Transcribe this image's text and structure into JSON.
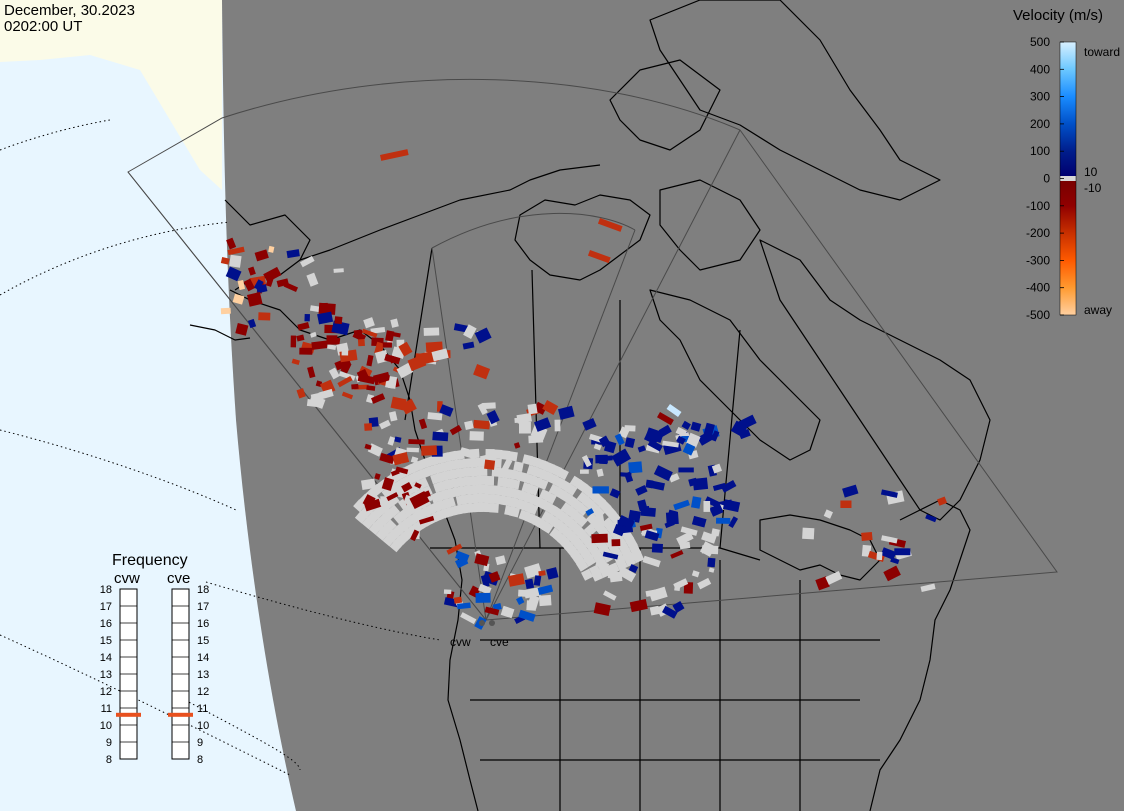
{
  "header": {
    "date": "December, 30.2023",
    "time": "0202:00 UT"
  },
  "colorbar": {
    "title": "Velocity (m/s)",
    "ticks": [
      "500",
      "400",
      "300",
      "200",
      "100",
      "0",
      "-100",
      "-200",
      "-300",
      "-400",
      "-500"
    ],
    "ticks_values": [
      500,
      400,
      300,
      200,
      100,
      0,
      -100,
      -200,
      -300,
      -400,
      -500
    ],
    "inner_labels": [
      "10",
      "-10"
    ],
    "toward_label": "toward",
    "away_label": "away",
    "stops": [
      "#d8f0ff",
      "#6cc8ff",
      "#1a8cff",
      "#0050c8",
      "#001e8c",
      "#000070",
      "#d8d8d8",
      "#7a0000",
      "#a01000",
      "#c83000",
      "#ff7a00",
      "#ffd0a0"
    ]
  },
  "frequency_panel": {
    "title": "Frequency",
    "radars": [
      "cvw",
      "cve"
    ],
    "scale": [
      "18",
      "17",
      "16",
      "15",
      "14",
      "13",
      "12",
      "11",
      "10",
      "9",
      "8"
    ],
    "scale_values": [
      18,
      17,
      16,
      15,
      14,
      13,
      12,
      11,
      10,
      9,
      8
    ],
    "current_mhz": [
      10.6,
      10.6
    ],
    "indicator_color": "#e8501e"
  },
  "map": {
    "station_labels": [
      "cvw",
      "cve"
    ],
    "colors": {
      "background": "#7f7f7f",
      "ocean": "#e8f6ff",
      "daylight": "#fbfbe8",
      "coast": "#000000",
      "fov": "#4a4a4a"
    }
  }
}
